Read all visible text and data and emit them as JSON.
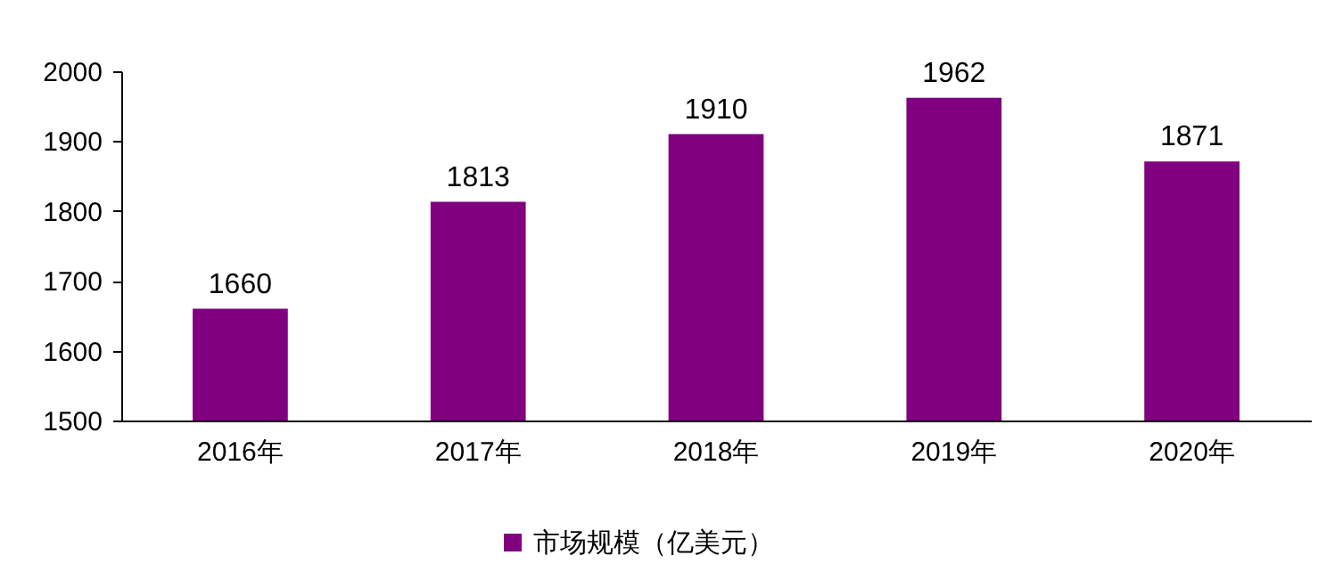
{
  "chart_data": {
    "type": "bar",
    "categories": [
      "2016年",
      "2017年",
      "2018年",
      "2019年",
      "2020年"
    ],
    "series": [
      {
        "name": "市场规模（亿美元）",
        "color": "#800080",
        "values": [
          1660,
          1813,
          1910,
          1962,
          1871
        ]
      }
    ],
    "ylim": [
      1500,
      2000
    ],
    "yticks": [
      1500,
      1600,
      1700,
      1800,
      1900,
      2000
    ],
    "data_labels": true,
    "legend": "bottom"
  }
}
